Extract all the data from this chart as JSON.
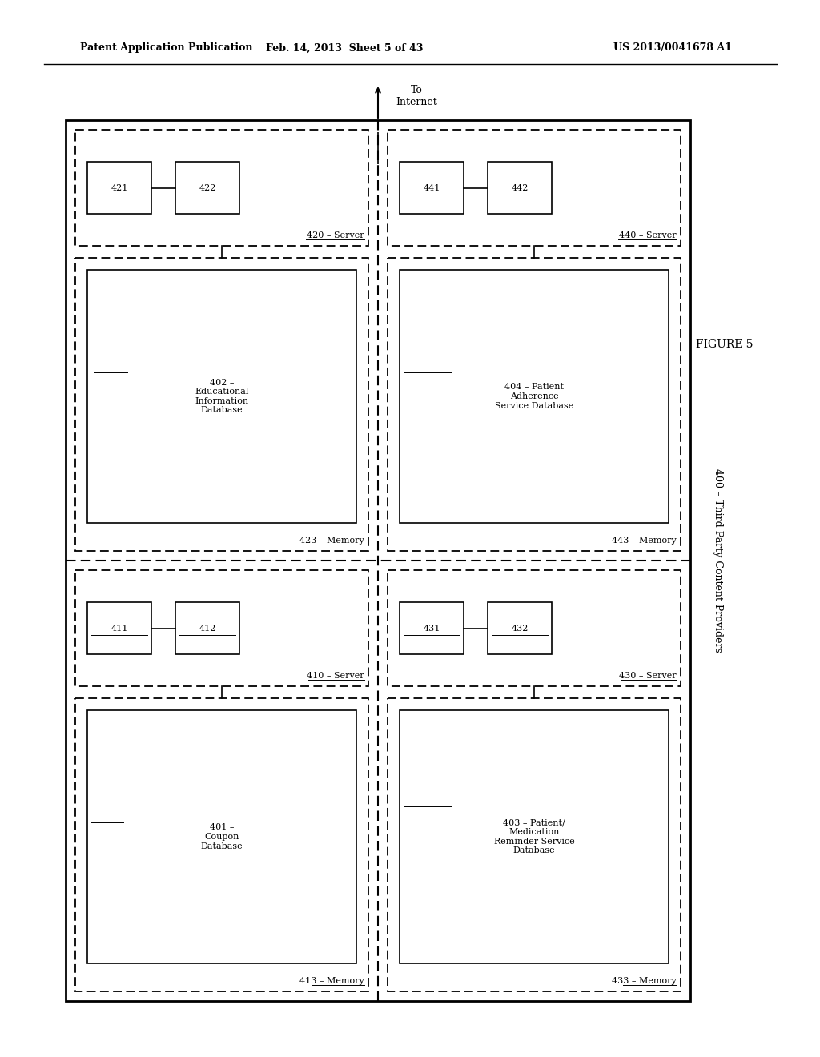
{
  "header_left": "Patent Application Publication",
  "header_mid": "Feb. 14, 2013  Sheet 5 of 43",
  "header_right": "US 2013/0041678 A1",
  "figure_label": "FIGURE 5",
  "outer_label": "400 – Third Party Content Providers",
  "internet_label": "To\nInternet",
  "top_left_server_label": "420 – Server",
  "top_left_memory_label": "423 – Memory",
  "top_left_box1_label": "421",
  "top_left_box2_label": "422",
  "top_left_db_label": "402 –\nEducational\nInformation\nDatabase",
  "top_right_server_label": "440 – Server",
  "top_right_memory_label": "443 – Memory",
  "top_right_box1_label": "441",
  "top_right_box2_label": "442",
  "top_right_db_label": "404 – Patient\nAdherence\nService Database",
  "bot_left_server_label": "410 – Server",
  "bot_left_memory_label": "413 – Memory",
  "bot_left_box1_label": "411",
  "bot_left_box2_label": "412",
  "bot_left_db_label": "401 –\nCoupon\nDatabase",
  "bot_right_server_label": "430 – Server",
  "bot_right_memory_label": "433 – Memory",
  "bot_right_box1_label": "431",
  "bot_right_box2_label": "432",
  "bot_right_db_label": "403 – Patient/\nMedication\nReminder Service\nDatabase",
  "bg_color": "#ffffff"
}
